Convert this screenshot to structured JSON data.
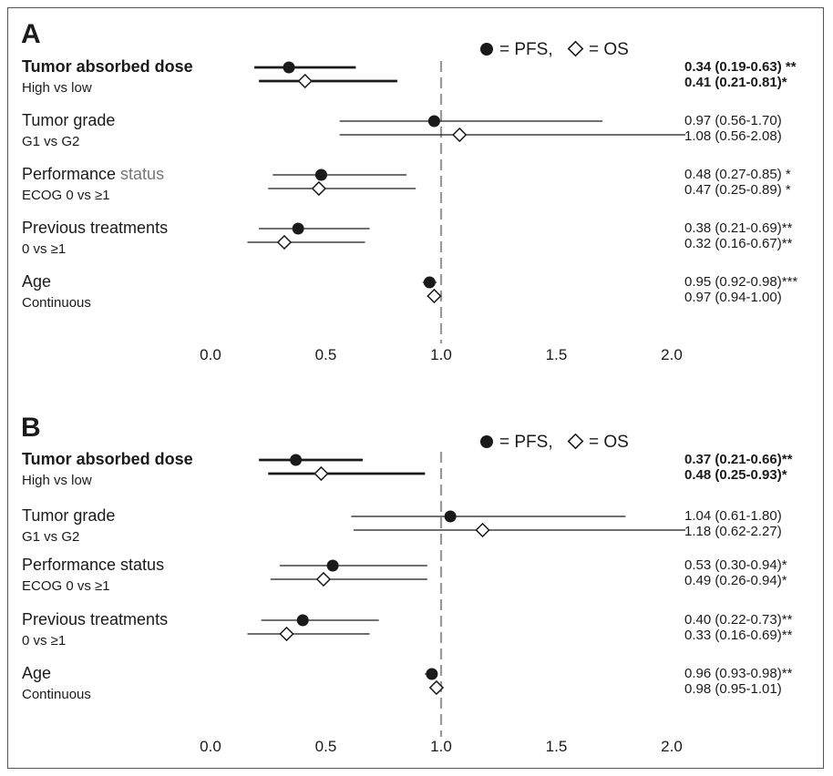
{
  "chart_data": [
    {
      "panel": "A",
      "type": "forest",
      "legend": {
        "pfs_label": "= PFS,",
        "os_label": "= OS"
      },
      "xlim": [
        0.0,
        2.0
      ],
      "x_ticks": [
        "0.0",
        "0.5",
        "1.0",
        "1.5",
        "2.0"
      ],
      "x_tick_values": [
        0.0,
        0.5,
        1.0,
        1.5,
        2.0
      ],
      "reference_line": 1.0,
      "rows": [
        {
          "name": "Tumor absorbed dose",
          "sub": "High vs low",
          "bold": true,
          "pfs": {
            "hr": 0.34,
            "lo": 0.19,
            "hi": 0.63,
            "text": "0.34 (0.19-0.63) **"
          },
          "os": {
            "hr": 0.41,
            "lo": 0.21,
            "hi": 0.81,
            "text": "0.41 (0.21-0.81)*"
          }
        },
        {
          "name": "Tumor grade",
          "sub": "G1 vs G2",
          "bold": false,
          "pfs": {
            "hr": 0.97,
            "lo": 0.56,
            "hi": 1.7,
            "text": "0.97 (0.56-1.70)"
          },
          "os": {
            "hr": 1.08,
            "lo": 0.56,
            "hi": 2.08,
            "text": "1.08 (0.56-2.08)"
          }
        },
        {
          "name": "Performance",
          "name_suffix": " status",
          "sub": "ECOG 0 vs ≥1",
          "bold": false,
          "pfs": {
            "hr": 0.48,
            "lo": 0.27,
            "hi": 0.85,
            "text": "0.48 (0.27-0.85) *"
          },
          "os": {
            "hr": 0.47,
            "lo": 0.25,
            "hi": 0.89,
            "text": "0.47 (0.25-0.89) *"
          }
        },
        {
          "name": "Previous treatments",
          "sub": "0 vs ≥1",
          "bold": false,
          "pfs": {
            "hr": 0.38,
            "lo": 0.21,
            "hi": 0.69,
            "text": "0.38 (0.21-0.69)**"
          },
          "os": {
            "hr": 0.32,
            "lo": 0.16,
            "hi": 0.67,
            "text": "0.32 (0.16-0.67)**"
          }
        },
        {
          "name": "Age",
          "sub": "Continuous",
          "bold": false,
          "pfs": {
            "hr": 0.95,
            "lo": 0.92,
            "hi": 0.98,
            "text": "0.95 (0.92-0.98)***"
          },
          "os": {
            "hr": 0.97,
            "lo": 0.94,
            "hi": 1.0,
            "text": "0.97 (0.94-1.00)"
          }
        }
      ]
    },
    {
      "panel": "B",
      "type": "forest",
      "legend": {
        "pfs_label": "= PFS,",
        "os_label": "= OS"
      },
      "xlim": [
        0.0,
        2.0
      ],
      "x_ticks": [
        "0.0",
        "0.5",
        "1.0",
        "1.5",
        "2.0"
      ],
      "x_tick_values": [
        0.0,
        0.5,
        1.0,
        1.5,
        2.0
      ],
      "reference_line": 1.0,
      "rows": [
        {
          "name": "Tumor absorbed dose",
          "sub": "High vs low",
          "bold": true,
          "pfs": {
            "hr": 0.37,
            "lo": 0.21,
            "hi": 0.66,
            "text": "0.37 (0.21-0.66)**"
          },
          "os": {
            "hr": 0.48,
            "lo": 0.25,
            "hi": 0.93,
            "text": "0.48 (0.25-0.93)*"
          }
        },
        {
          "name": "Tumor grade",
          "sub": "G1 vs G2",
          "bold": false,
          "pfs": {
            "hr": 1.04,
            "lo": 0.61,
            "hi": 1.8,
            "text": "1.04 (0.61-1.80)"
          },
          "os": {
            "hr": 1.18,
            "lo": 0.62,
            "hi": 2.27,
            "text": "1.18 (0.62-2.27)"
          }
        },
        {
          "name": "Performance status",
          "sub": "ECOG 0 vs ≥1",
          "bold": false,
          "pfs": {
            "hr": 0.53,
            "lo": 0.3,
            "hi": 0.94,
            "text": "0.53 (0.30-0.94)*"
          },
          "os": {
            "hr": 0.49,
            "lo": 0.26,
            "hi": 0.94,
            "text": "0.49 (0.26-0.94)*"
          }
        },
        {
          "name": "Previous treatments",
          "sub": "0 vs ≥1",
          "bold": false,
          "pfs": {
            "hr": 0.4,
            "lo": 0.22,
            "hi": 0.73,
            "text": "0.40 (0.22-0.73)**"
          },
          "os": {
            "hr": 0.33,
            "lo": 0.16,
            "hi": 0.69,
            "text": "0.33 (0.16-0.69)**"
          }
        },
        {
          "name": "Age",
          "sub": "Continuous",
          "bold": false,
          "pfs": {
            "hr": 0.96,
            "lo": 0.93,
            "hi": 0.98,
            "text": "0.96 (0.93-0.98)**"
          },
          "os": {
            "hr": 0.98,
            "lo": 0.95,
            "hi": 1.01,
            "text": "0.98 (0.95-1.01)"
          }
        }
      ]
    }
  ],
  "colors": {
    "ink": "#1a1a1a",
    "reference_line": "#999999",
    "muted_text": "#777777"
  }
}
